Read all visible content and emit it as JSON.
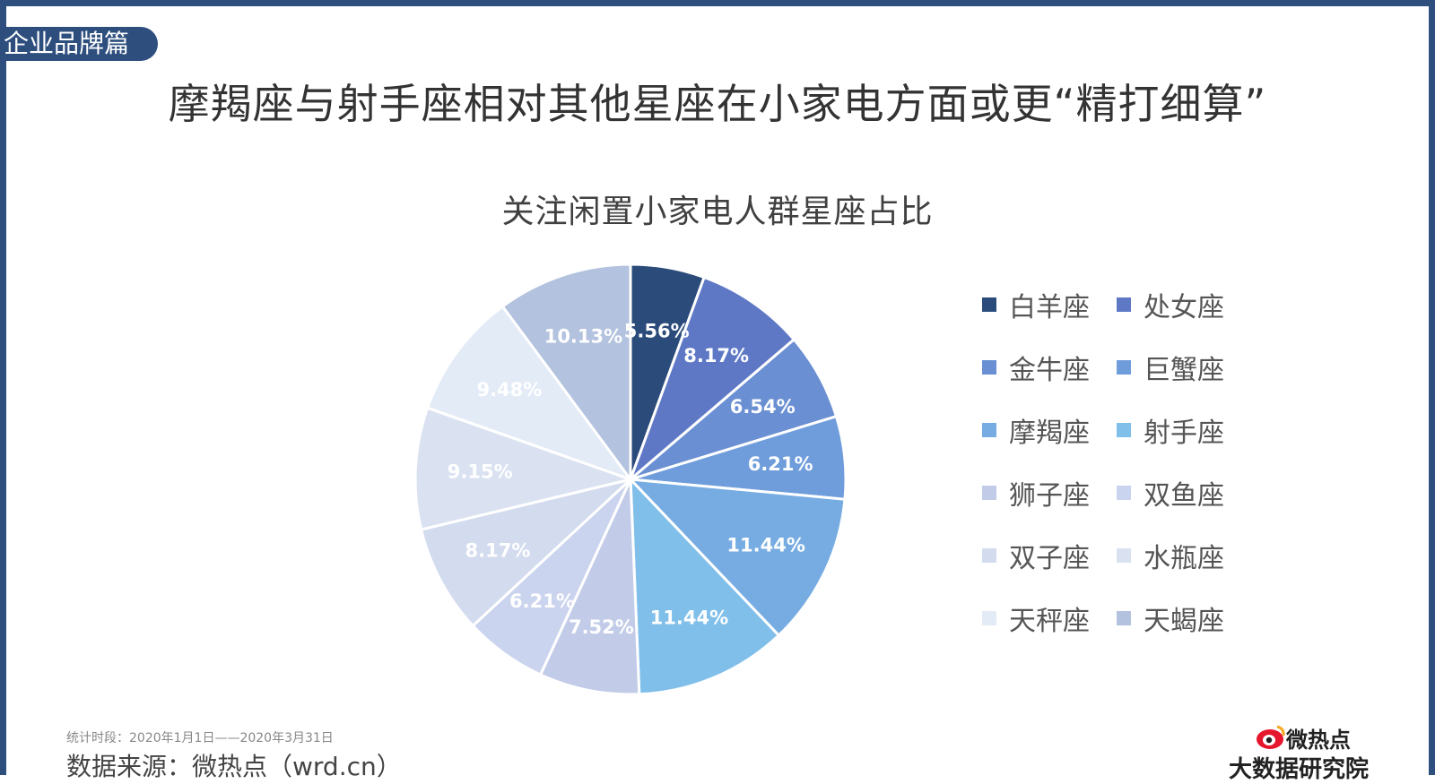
{
  "tag": "企业品牌篇",
  "headline": "摩羯座与射手座相对其他星座在小家电方面或更“精打细算”",
  "footer": {
    "period": "统计时段：2020年1月1日——2020年3月31日",
    "source": "数据来源：微热点（wrd.cn）"
  },
  "logo": {
    "name": "微热点",
    "subtitle": "大数据研究院",
    "icon": "weibo-eye-icon",
    "color": "#e6162d"
  },
  "chart_data": {
    "type": "pie",
    "title": "关注闲置小家电人群星座占比",
    "legend_position": "right",
    "start_angle_deg": 0,
    "direction": "clockwise",
    "slices": [
      {
        "label": "白羊座",
        "value": 5.56,
        "value_label": "5.56%",
        "color": "#2b4b7b"
      },
      {
        "label": "处女座",
        "value": 8.17,
        "value_label": "8.17%",
        "color": "#5f78c6"
      },
      {
        "label": "金牛座",
        "value": 6.54,
        "value_label": "6.54%",
        "color": "#6a8fd2"
      },
      {
        "label": "巨蟹座",
        "value": 6.21,
        "value_label": "6.21%",
        "color": "#6f9ddc"
      },
      {
        "label": "摩羯座",
        "value": 11.44,
        "value_label": "11.44%",
        "color": "#76ace2"
      },
      {
        "label": "射手座",
        "value": 11.44,
        "value_label": "11.44%",
        "color": "#80bfea"
      },
      {
        "label": "狮子座",
        "value": 7.52,
        "value_label": "7.52%",
        "color": "#c2cce8"
      },
      {
        "label": "双鱼座",
        "value": 6.21,
        "value_label": "6.21%",
        "color": "#cbd4ee"
      },
      {
        "label": "双子座",
        "value": 8.17,
        "value_label": "8.17%",
        "color": "#d3dbef"
      },
      {
        "label": "水瓶座",
        "value": 9.15,
        "value_label": "9.15%",
        "color": "#dae2f2"
      },
      {
        "label": "天秤座",
        "value": 9.48,
        "value_label": "9.48%",
        "color": "#e3ebf7"
      },
      {
        "label": "天蝎座",
        "value": 10.13,
        "value_label": "10.13%",
        "color": "#b3c2de"
      }
    ]
  }
}
